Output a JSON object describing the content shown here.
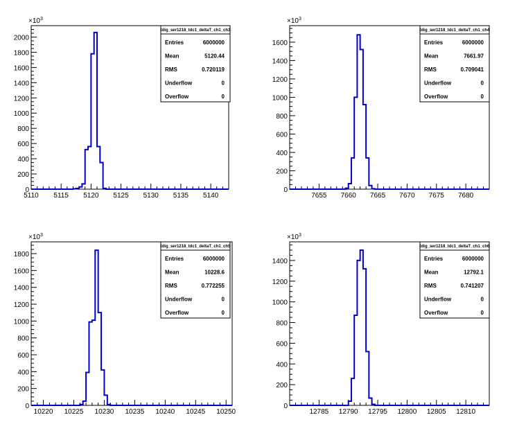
{
  "chart_data": [
    {
      "type": "bar",
      "title": "",
      "xlabel": "",
      "ylabel": "",
      "y_exponent_base": "10",
      "y_exponent_power": "3",
      "xlim": [
        5110,
        5143
      ],
      "ylim": [
        0,
        2150
      ],
      "xticks": [
        5110,
        5115,
        5120,
        5125,
        5130,
        5135,
        5140
      ],
      "yticks": [
        0,
        200,
        400,
        600,
        800,
        1000,
        1200,
        1400,
        1600,
        1800,
        2000
      ],
      "bin_edges": [
        5117.0,
        5117.5,
        5118.0,
        5118.5,
        5119.0,
        5119.5,
        5120.0,
        5120.5,
        5121.0,
        5121.5,
        5122.0,
        5122.5
      ],
      "values": [
        5,
        10,
        30,
        70,
        520,
        560,
        1780,
        2060,
        560,
        350,
        10
      ],
      "stats": {
        "name": "tdig_ser1218_tdc1_deltaT_ch1_ch3",
        "rows": [
          {
            "label": "Entries",
            "value": "6000000"
          },
          {
            "label": "Mean",
            "value": "5120.44"
          },
          {
            "label": "RMS",
            "value": "0.720119"
          },
          {
            "label": "Underflow",
            "value": "0"
          },
          {
            "label": "Overflow",
            "value": "0"
          }
        ]
      },
      "color": "#0000cc"
    },
    {
      "type": "bar",
      "title": "",
      "xlabel": "",
      "ylabel": "",
      "y_exponent_base": "10",
      "y_exponent_power": "3",
      "xlim": [
        7650,
        7684
      ],
      "ylim": [
        0,
        1780
      ],
      "xticks": [
        7655,
        7660,
        7665,
        7670,
        7675,
        7680
      ],
      "yticks": [
        0,
        200,
        400,
        600,
        800,
        1000,
        1200,
        1400,
        1600
      ],
      "bin_edges": [
        7659.5,
        7660.0,
        7660.5,
        7661.0,
        7661.5,
        7662.0,
        7662.5,
        7663.0,
        7663.5,
        7664.0,
        7664.5
      ],
      "values": [
        10,
        60,
        340,
        1000,
        1680,
        1520,
        920,
        340,
        40,
        5
      ],
      "stats": {
        "name": "tdig_ser1218_tdc1_deltaT_ch1_ch4",
        "rows": [
          {
            "label": "Entries",
            "value": "6000000"
          },
          {
            "label": "Mean",
            "value": "7661.97"
          },
          {
            "label": "RMS",
            "value": "0.709041"
          },
          {
            "label": "Underflow",
            "value": "0"
          },
          {
            "label": "Overflow",
            "value": "0"
          }
        ]
      },
      "color": "#0000cc"
    },
    {
      "type": "bar",
      "title": "",
      "xlabel": "",
      "ylabel": "",
      "y_exponent_base": "10",
      "y_exponent_power": "3",
      "xlim": [
        10218,
        10251
      ],
      "ylim": [
        0,
        1940
      ],
      "xticks": [
        10220,
        10225,
        10230,
        10235,
        10240,
        10245,
        10250
      ],
      "yticks": [
        0,
        200,
        400,
        600,
        800,
        1000,
        1200,
        1400,
        1600,
        1800
      ],
      "bin_edges": [
        10226.0,
        10226.5,
        10227.0,
        10227.5,
        10228.0,
        10228.5,
        10229.0,
        10229.5,
        10230.0,
        10230.5,
        10231.0
      ],
      "values": [
        10,
        50,
        390,
        990,
        1010,
        1840,
        1100,
        420,
        120,
        10
      ],
      "stats": {
        "name": "tdig_ser1218_tdc1_deltaT_ch1_ch5",
        "rows": [
          {
            "label": "Entries",
            "value": "6000000"
          },
          {
            "label": "Mean",
            "value": "10228.6"
          },
          {
            "label": "RMS",
            "value": "0.772255"
          },
          {
            "label": "Underflow",
            "value": "0"
          },
          {
            "label": "Overflow",
            "value": "0"
          }
        ]
      },
      "color": "#0000cc"
    },
    {
      "type": "bar",
      "title": "",
      "xlabel": "",
      "ylabel": "",
      "y_exponent_base": "10",
      "y_exponent_power": "3",
      "xlim": [
        12780,
        12814
      ],
      "ylim": [
        0,
        1580
      ],
      "xticks": [
        12785,
        12790,
        12795,
        12800,
        12805,
        12810
      ],
      "yticks": [
        0,
        200,
        400,
        600,
        800,
        1000,
        1200,
        1400
      ],
      "bin_edges": [
        12790.0,
        12790.5,
        12791.0,
        12791.5,
        12792.0,
        12792.5,
        12793.0,
        12793.5,
        12794.0,
        12794.5
      ],
      "values": [
        40,
        260,
        870,
        1400,
        1500,
        1320,
        520,
        70,
        10
      ],
      "stats": {
        "name": "tdig_ser1218_tdc1_deltaT_ch1_ch6",
        "rows": [
          {
            "label": "Entries",
            "value": "6000000"
          },
          {
            "label": "Mean",
            "value": "12792.1"
          },
          {
            "label": "RMS",
            "value": "0.741207"
          },
          {
            "label": "Underflow",
            "value": "0"
          },
          {
            "label": "Overflow",
            "value": "0"
          }
        ]
      },
      "color": "#0000cc"
    }
  ]
}
